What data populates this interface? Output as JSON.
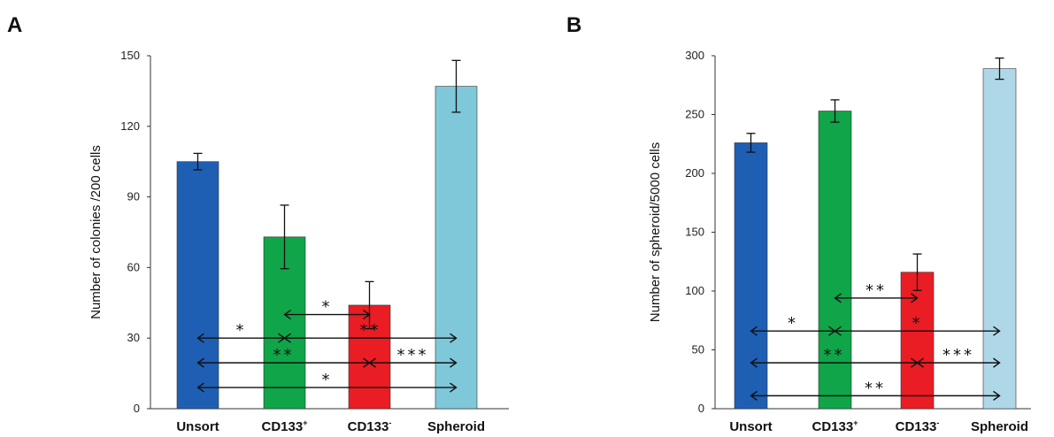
{
  "panels": [
    "A",
    "B"
  ],
  "chart_data": [
    {
      "type": "bar",
      "panel": "A",
      "ylabel": "Number of colonies /200 cells",
      "ylim": [
        0,
        150
      ],
      "yticks": [
        "0",
        "30",
        "60",
        "90",
        "120",
        "150"
      ],
      "categories": [
        {
          "base": "Unsort",
          "sup": ""
        },
        {
          "base": "CD133",
          "sup": "+"
        },
        {
          "base": "CD133",
          "sup": "-"
        },
        {
          "base": "Spheroid",
          "sup": ""
        }
      ],
      "values": [
        105,
        73,
        44,
        137
      ],
      "errors": [
        3.5,
        13.5,
        10,
        11
      ],
      "colors": [
        "#1f5fb3",
        "#10a548",
        "#ea1c24",
        "#7ec8da"
      ],
      "significance": [
        {
          "from": 1,
          "to": 2,
          "y": 40,
          "label": "*"
        },
        {
          "from": 0,
          "to": 1,
          "y": 30,
          "label": "*"
        },
        {
          "from": 1,
          "to": 3,
          "y": 30,
          "label": "**"
        },
        {
          "from": 0,
          "to": 2,
          "y": 19.5,
          "label": "**"
        },
        {
          "from": 2,
          "to": 3,
          "y": 19.5,
          "label": "***"
        },
        {
          "from": 0,
          "to": 3,
          "y": 9,
          "label": "*"
        }
      ]
    },
    {
      "type": "bar",
      "panel": "B",
      "ylabel": "Number of spheroid/5000 cells",
      "ylim": [
        0,
        300
      ],
      "yticks": [
        "0",
        "50",
        "100",
        "150",
        "200",
        "250",
        "300"
      ],
      "categories": [
        {
          "base": "Unsort",
          "sup": ""
        },
        {
          "base": "CD133",
          "sup": "+"
        },
        {
          "base": "CD133",
          "sup": "-"
        },
        {
          "base": "Spheroid",
          "sup": ""
        }
      ],
      "values": [
        226,
        253,
        116,
        289
      ],
      "errors": [
        8,
        9.5,
        15.5,
        9
      ],
      "colors": [
        "#1f5fb3",
        "#10a548",
        "#ea1c24",
        "#aed8e8"
      ],
      "significance": [
        {
          "from": 1,
          "to": 2,
          "y": 94,
          "label": "**"
        },
        {
          "from": 0,
          "to": 1,
          "y": 66,
          "label": "*"
        },
        {
          "from": 1,
          "to": 3,
          "y": 66,
          "label": "*"
        },
        {
          "from": 0,
          "to": 2,
          "y": 39,
          "label": "**"
        },
        {
          "from": 2,
          "to": 3,
          "y": 39,
          "label": "***"
        },
        {
          "from": 0,
          "to": 3,
          "y": 11,
          "label": "**"
        }
      ]
    }
  ]
}
